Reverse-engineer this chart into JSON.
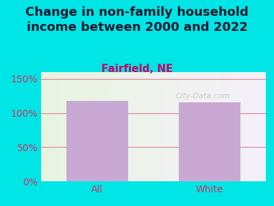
{
  "title": "Change in non-family household\nincome between 2000 and 2022",
  "subtitle": "Fairfield, NE",
  "categories": [
    "All",
    "White"
  ],
  "values": [
    118,
    116
  ],
  "bar_color": "#c9a8d4",
  "title_color": "#1a1a2e",
  "subtitle_color": "#cc0066",
  "tick_color": "#cc3366",
  "background_outer": "#00e5e5",
  "background_inner_left": "#e8f5e0",
  "background_inner_right": "#f5f0fa",
  "ylim": [
    0,
    160
  ],
  "yticks": [
    0,
    50,
    100,
    150
  ],
  "ytick_labels": [
    "0%",
    "50%",
    "100%",
    "150%"
  ],
  "watermark": "City-Data.com",
  "title_fontsize": 13,
  "subtitle_fontsize": 11,
  "tick_fontsize": 10
}
